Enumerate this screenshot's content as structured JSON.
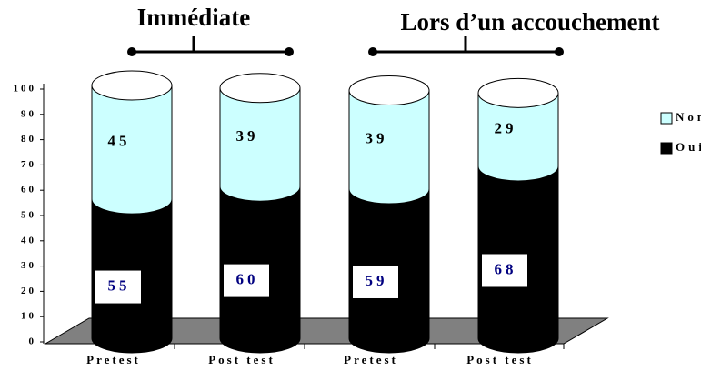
{
  "chart_data": {
    "type": "bar3d-stacked",
    "annotations": [
      "Immédiate",
      "Lors d’un accouchement"
    ],
    "categories": [
      "Pretest",
      "Post test",
      "Pretest",
      "Post test"
    ],
    "series": [
      {
        "name": "Oui",
        "color": "#000000",
        "values": [
          55,
          60,
          59,
          68
        ]
      },
      {
        "name": "Non",
        "color": "#ccffff",
        "values": [
          45,
          39,
          39,
          29
        ]
      }
    ],
    "ylim": [
      0,
      100
    ],
    "yticks": [
      0,
      10,
      20,
      30,
      40,
      50,
      60,
      70,
      80,
      90,
      100
    ],
    "legend": "right"
  }
}
